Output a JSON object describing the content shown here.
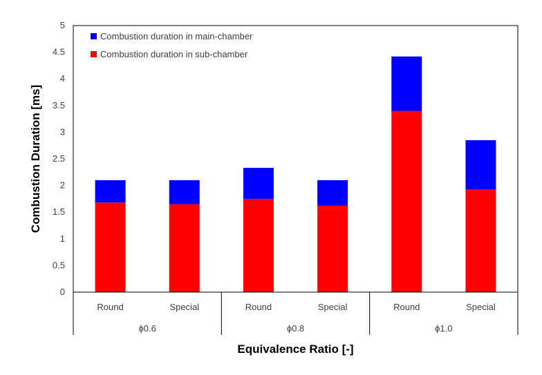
{
  "chart_data": {
    "type": "bar",
    "stacked": true,
    "title": "",
    "xlabel": "Equivalence Ratio [-]",
    "ylabel": "Combustion Duration [ms]",
    "ylim": [
      0,
      5
    ],
    "yticks": [
      "0",
      "0.5",
      "1",
      "1.5",
      "2",
      "2.5",
      "3",
      "3.5",
      "4",
      "4.5",
      "5"
    ],
    "grid": false,
    "legend_position": "top-left",
    "groups": [
      {
        "label": "ϕ0.6",
        "categories": [
          "Round",
          "Special"
        ]
      },
      {
        "label": "ϕ0.8",
        "categories": [
          "Round",
          "Special"
        ]
      },
      {
        "label": "ϕ1.0",
        "categories": [
          "Round",
          "Special"
        ]
      }
    ],
    "categories": [
      "Round",
      "Special",
      "Round",
      "Special",
      "Round",
      "Special"
    ],
    "series": [
      {
        "name": "Combustion duration in sub-chamber",
        "color": "#ff0000",
        "values": [
          1.68,
          1.65,
          1.75,
          1.62,
          3.4,
          1.93
        ]
      },
      {
        "name": "Combustion duration in main-chamber",
        "color": "#0000ff",
        "values": [
          0.42,
          0.45,
          0.58,
          0.48,
          1.02,
          0.92
        ]
      }
    ],
    "legend": [
      {
        "label": "Combustion duration in main-chamber",
        "color": "#0000ff"
      },
      {
        "label": "Combustion duration in sub-chamber",
        "color": "#ff0000"
      }
    ]
  }
}
